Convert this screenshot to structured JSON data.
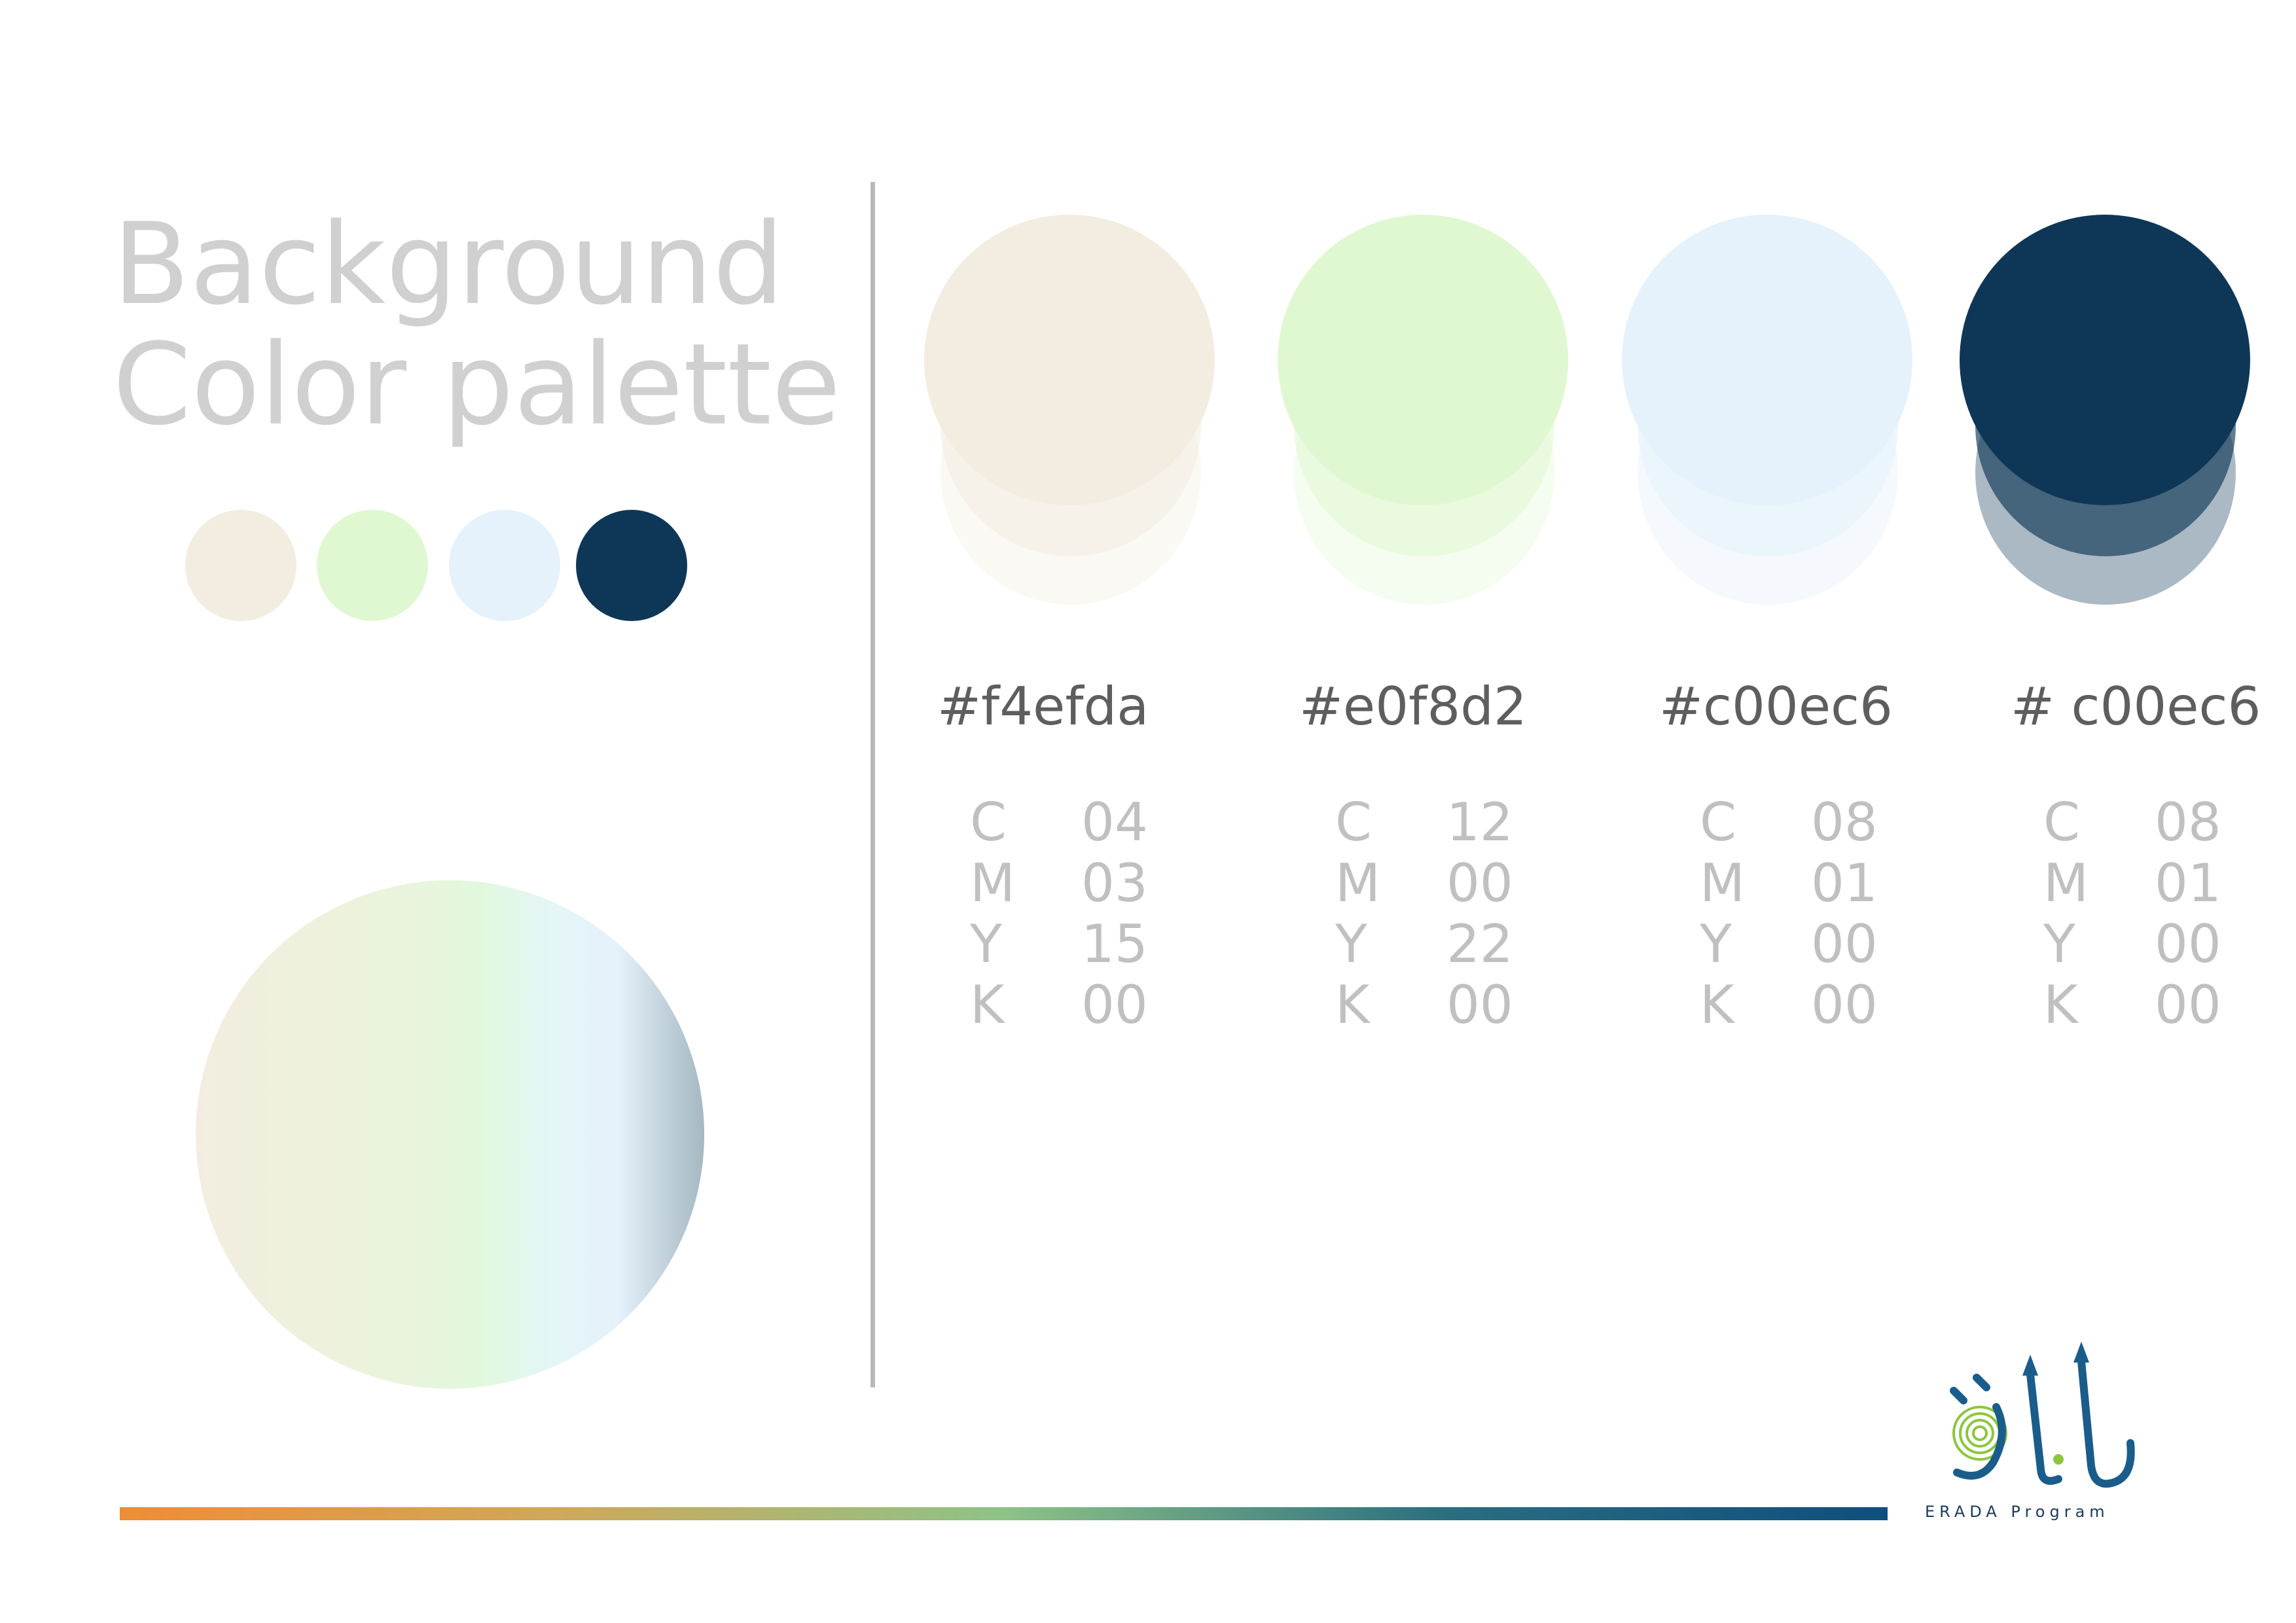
{
  "heading": {
    "line1": "Background",
    "line2": "Color palette"
  },
  "colors": {
    "beige": "#f2ede0",
    "green": "#e0f8d2",
    "blue": "#e5f1fb",
    "navy": "#0e3757",
    "divider": "#b8b8b8",
    "bar_start": "#ef8d35",
    "bar_end": "#0e4f7e"
  },
  "swatches": [
    {
      "hex": "#f4efda",
      "cmyk": [
        {
          "k": "C",
          "v": "04"
        },
        {
          "k": "M",
          "v": "03"
        },
        {
          "k": "Y",
          "v": "15"
        },
        {
          "k": "K",
          "v": "00"
        }
      ]
    },
    {
      "hex": "#e0f8d2",
      "cmyk": [
        {
          "k": "C",
          "v": "12"
        },
        {
          "k": "M",
          "v": "00"
        },
        {
          "k": "Y",
          "v": "22"
        },
        {
          "k": "K",
          "v": "00"
        }
      ]
    },
    {
      "hex": "#c00ec6",
      "cmyk": [
        {
          "k": "C",
          "v": "08"
        },
        {
          "k": "M",
          "v": "01"
        },
        {
          "k": "Y",
          "v": "00"
        },
        {
          "k": "K",
          "v": "00"
        }
      ]
    },
    {
      "hex": "# c00ec6",
      "cmyk": [
        {
          "k": "C",
          "v": "08"
        },
        {
          "k": "M",
          "v": "01"
        },
        {
          "k": "Y",
          "v": "00"
        },
        {
          "k": "K",
          "v": "00"
        }
      ]
    }
  ],
  "logo": {
    "caption": "ERADA Program"
  }
}
